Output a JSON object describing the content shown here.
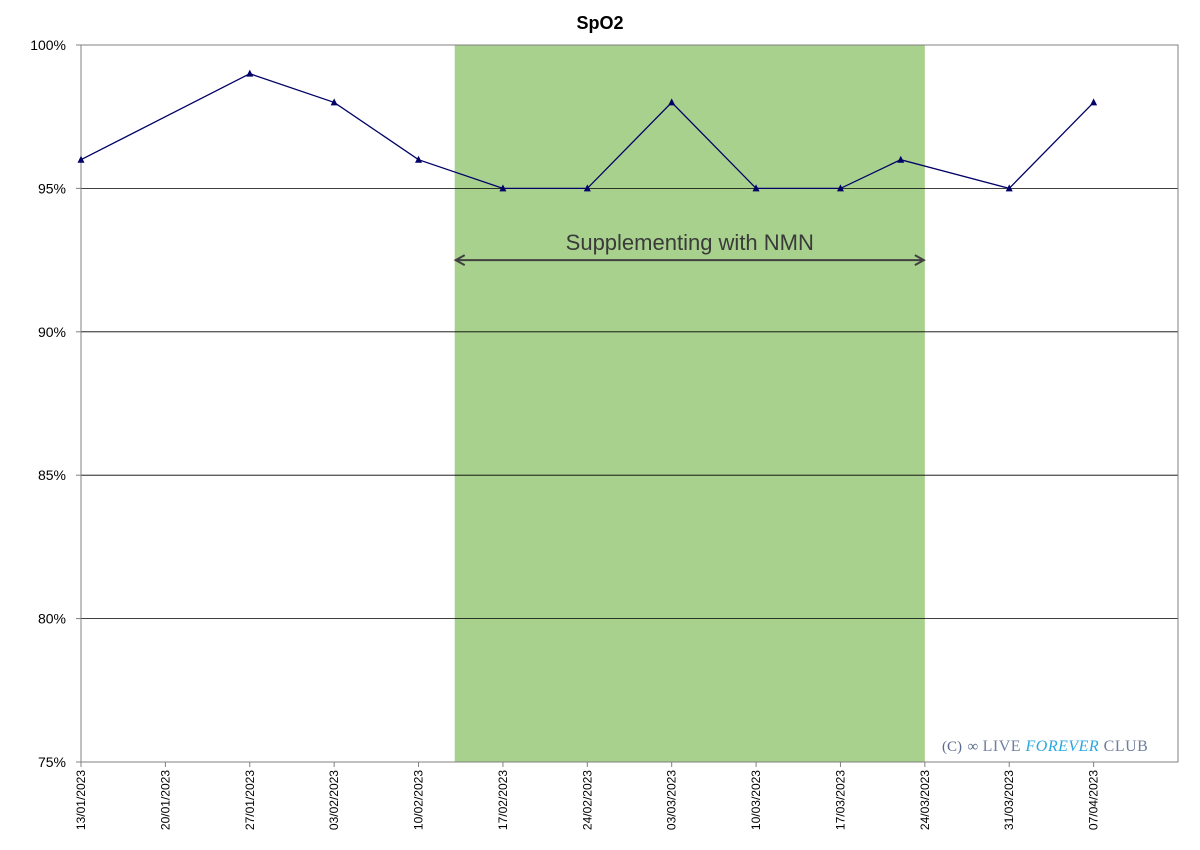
{
  "chart_data": {
    "type": "line",
    "title": "SpO2",
    "xlabel": "",
    "ylabel": "",
    "ylim": [
      75,
      100
    ],
    "yticks": [
      {
        "value": 75,
        "label": "75%"
      },
      {
        "value": 80,
        "label": "80%"
      },
      {
        "value": 85,
        "label": "85%"
      },
      {
        "value": 90,
        "label": "90%"
      },
      {
        "value": 95,
        "label": "95%"
      },
      {
        "value": 100,
        "label": "100%"
      }
    ],
    "xlim": [
      "13/01/2023",
      "14/04/2023"
    ],
    "xticks": [
      "13/01/2023",
      "20/01/2023",
      "27/01/2023",
      "03/02/2023",
      "10/02/2023",
      "17/02/2023",
      "24/02/2023",
      "03/03/2023",
      "10/03/2023",
      "17/03/2023",
      "24/03/2023",
      "31/03/2023",
      "07/04/2023"
    ],
    "grid": {
      "horizontal": true,
      "vertical": false
    },
    "series": [
      {
        "color": "#000066",
        "marker": "triangle",
        "points": [
          {
            "x": "13/01/2023",
            "y": 96
          },
          {
            "x": "27/01/2023",
            "y": 99
          },
          {
            "x": "03/02/2023",
            "y": 98
          },
          {
            "x": "10/02/2023",
            "y": 96
          },
          {
            "x": "17/02/2023",
            "y": 95
          },
          {
            "x": "24/02/2023",
            "y": 95
          },
          {
            "x": "03/03/2023",
            "y": 98
          },
          {
            "x": "10/03/2023",
            "y": 95
          },
          {
            "x": "17/03/2023",
            "y": 95
          },
          {
            "x": "22/03/2023",
            "y": 96
          },
          {
            "x": "31/03/2023",
            "y": 95
          },
          {
            "x": "07/04/2023",
            "y": 98
          }
        ]
      }
    ],
    "annotations": [
      {
        "type": "band",
        "label": "Supplementing with NMN",
        "x_start": "13/02/2023",
        "x_end": "24/03/2023",
        "color": "#a8d18e",
        "arrow_y": 92.5
      }
    ]
  },
  "watermark": {
    "prefix": "(C)",
    "part1": "LIVE",
    "part2": "FOREVER",
    "part3": "CLUB",
    "icon": "infinity-icon"
  }
}
